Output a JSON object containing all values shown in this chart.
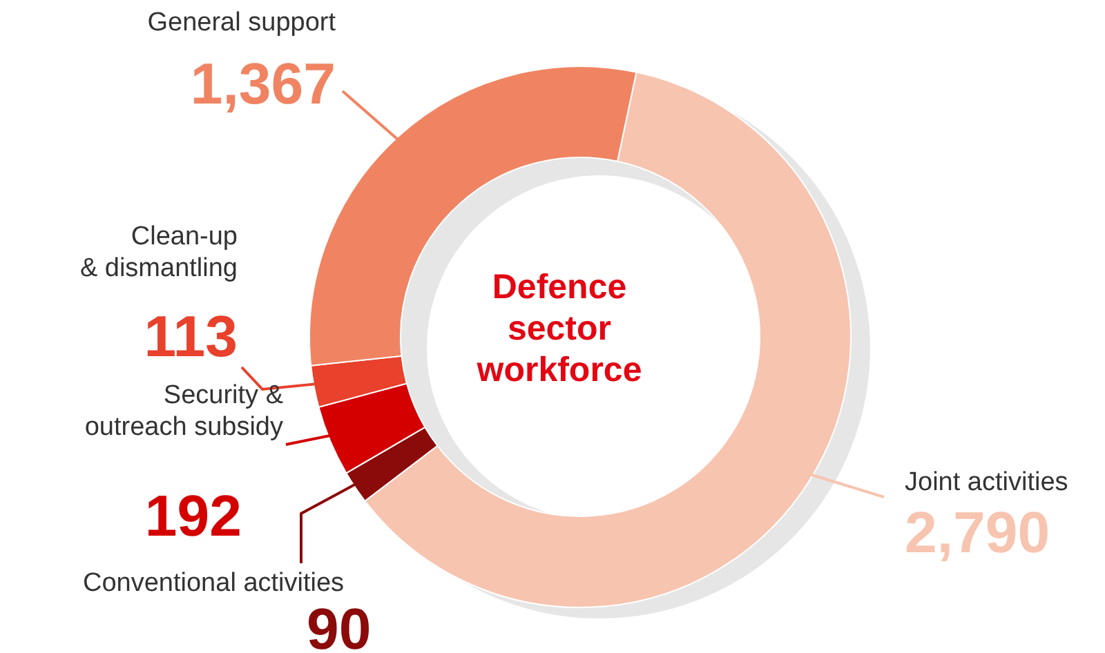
{
  "chart_data": {
    "type": "donut",
    "title": "Defence\nsector\nworkforce",
    "categories": [
      "Joint activities",
      "Conventional activities",
      "Security &\noutreach subsidy",
      "Clean-up\n& dismantling",
      "General support"
    ],
    "values": [
      2790,
      90,
      192,
      113,
      1367
    ],
    "value_labels": [
      "2,790",
      "90",
      "192",
      "113",
      "1,367"
    ],
    "colors": [
      "#f7c4b0",
      "#8b0a0a",
      "#d40000",
      "#e8412c",
      "#f08462"
    ],
    "legend": false
  }
}
